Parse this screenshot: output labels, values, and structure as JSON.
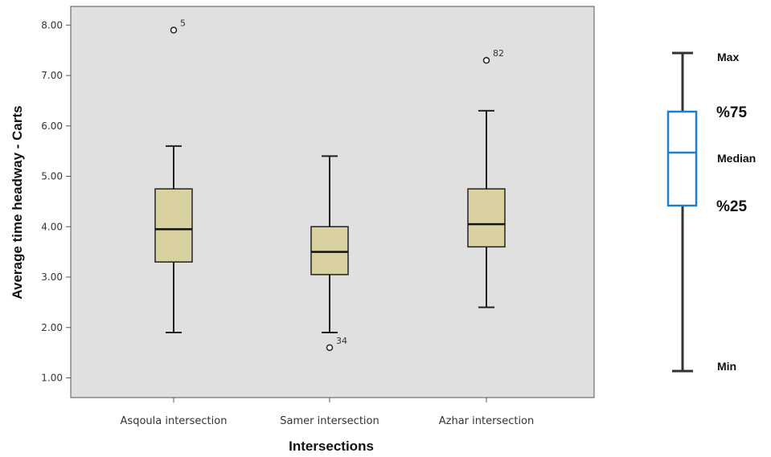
{
  "chart_data": {
    "type": "box",
    "xlabel": "Intersections",
    "ylabel": "Average time headway - Carts",
    "ylim": [
      0.85,
      8.35
    ],
    "yticks": [
      "1.00",
      "2.00",
      "3.00",
      "4.00",
      "5.00",
      "6.00",
      "7.00",
      "8.00"
    ],
    "grid": false,
    "colors": {
      "plot_bg": "#e0e0e0",
      "box_fill": "#d9d1a0",
      "legend_box": "#1f7fcf"
    },
    "categories": [
      "Asqoula intersection",
      "Samer intersection",
      "Azhar intersection"
    ],
    "boxes": [
      {
        "category": "Asqoula intersection",
        "min": 1.9,
        "q1": 3.3,
        "median": 3.95,
        "q3": 4.75,
        "max": 5.6,
        "outliers": [
          {
            "value": 7.9,
            "label": "5"
          }
        ]
      },
      {
        "category": "Samer intersection",
        "min": 1.9,
        "q1": 3.05,
        "median": 3.5,
        "q3": 4.0,
        "max": 5.4,
        "outliers": [
          {
            "value": 1.6,
            "label": "34"
          }
        ]
      },
      {
        "category": "Azhar intersection",
        "min": 2.4,
        "q1": 3.6,
        "median": 4.05,
        "q3": 4.75,
        "max": 6.3,
        "outliers": [
          {
            "value": 7.3,
            "label": "82"
          }
        ]
      }
    ],
    "legend": {
      "max": "Max",
      "q3": "%75",
      "median": "Median",
      "q1": "%25",
      "min": "Min"
    }
  }
}
